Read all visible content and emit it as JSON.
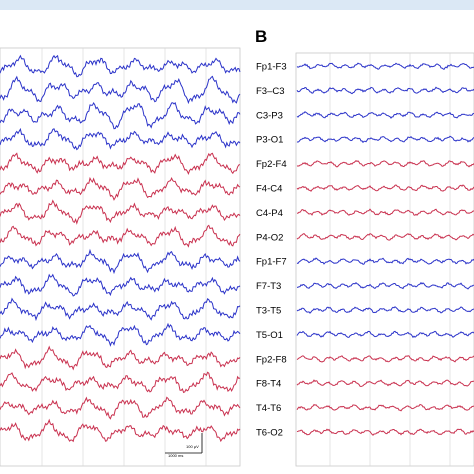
{
  "panel_b_letter": "B",
  "channels": [
    {
      "label": "Fp1-F3",
      "color": "#2b33c9"
    },
    {
      "label": "F3–C3",
      "color": "#2b33c9"
    },
    {
      "label": "C3-P3",
      "color": "#2b33c9"
    },
    {
      "label": "P3-O1",
      "color": "#2b33c9"
    },
    {
      "label": "Fp2-F4",
      "color": "#c9314f"
    },
    {
      "label": "F4-C4",
      "color": "#c9314f"
    },
    {
      "label": "C4-P4",
      "color": "#c9314f"
    },
    {
      "label": "P4-O2",
      "color": "#c9314f"
    },
    {
      "label": "Fp1-F7",
      "color": "#2b33c9"
    },
    {
      "label": "F7-T3",
      "color": "#2b33c9"
    },
    {
      "label": "T3-T5",
      "color": "#2b33c9"
    },
    {
      "label": "T5-O1",
      "color": "#2b33c9"
    },
    {
      "label": "Fp2-F8",
      "color": "#c9314f"
    },
    {
      "label": "F8-T4",
      "color": "#c9314f"
    },
    {
      "label": "T4-T6",
      "color": "#c9314f"
    },
    {
      "label": "T6-O2",
      "color": "#c9314f"
    }
  ],
  "scale_bar": {
    "time_label": "1000 ms",
    "amp_label": "100 µV"
  },
  "colors": {
    "left_hemisphere": "#2b33c9",
    "right_hemisphere": "#c9314f",
    "header_band": "#dbe8f5"
  }
}
